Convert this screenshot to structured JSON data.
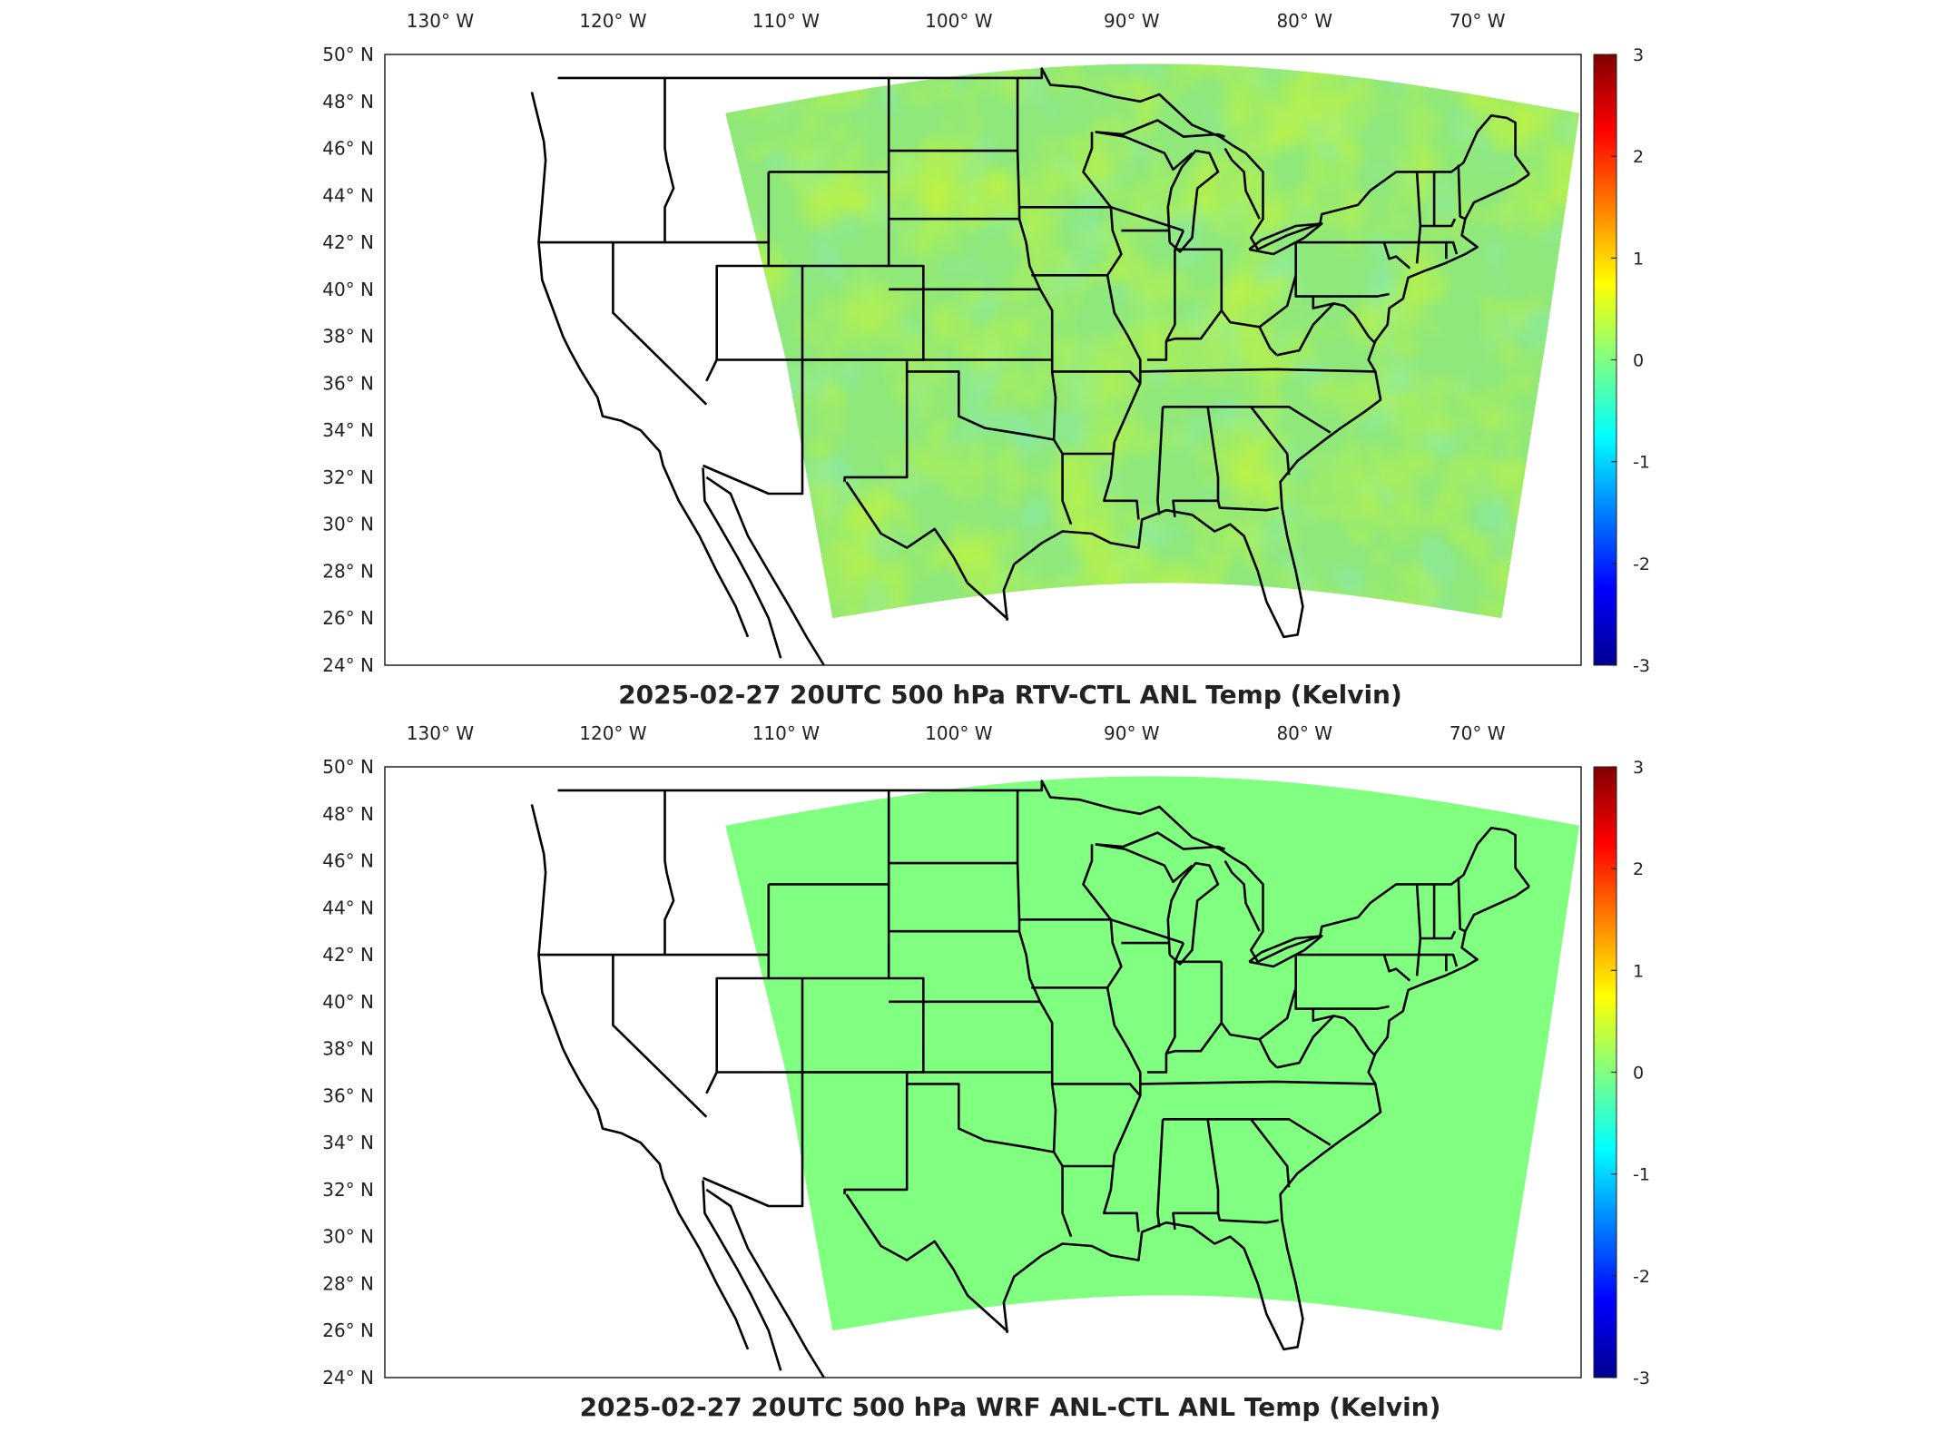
{
  "projection_lon": {
    "min": -133.2,
    "max": -64.0
  },
  "projection_lat": {
    "min": 24,
    "max": 50
  },
  "lon_labels": [
    "130",
    "120",
    "110",
    "100",
    "90",
    "80",
    "70"
  ],
  "lon_values": [
    -130,
    -120,
    -110,
    -100,
    -90,
    -80,
    -70
  ],
  "lon_suffix": "W",
  "lat_labels": [
    "50",
    "48",
    "46",
    "44",
    "42",
    "40",
    "38",
    "36",
    "34",
    "32",
    "30",
    "28",
    "26",
    "24"
  ],
  "lat_values": [
    50,
    48,
    46,
    44,
    42,
    40,
    38,
    36,
    34,
    32,
    30,
    28,
    26,
    24
  ],
  "lat_suffix": "N",
  "colorbar": {
    "ticks": [
      "3",
      "2",
      "1",
      "0",
      "-1",
      "-2",
      "-3"
    ],
    "range": [
      -3,
      3
    ],
    "colormap": "jet"
  },
  "panels": [
    {
      "title": "2025-02-27 20UTC 500 hPa RTV-CTL ANL Temp (Kelvin)",
      "field": "anomaly",
      "field_range_K": [
        -1.0,
        1.0
      ],
      "dominant_color": "#8fe87a"
    },
    {
      "title": "2025-02-27 20UTC 500 hPa WRF ANL-CTL ANL Temp (Kelvin)",
      "field": "uniform",
      "value_K": 0,
      "dominant_color": "#80ff80"
    }
  ],
  "colors": {
    "outline": "#000000",
    "axis": "#222222"
  }
}
